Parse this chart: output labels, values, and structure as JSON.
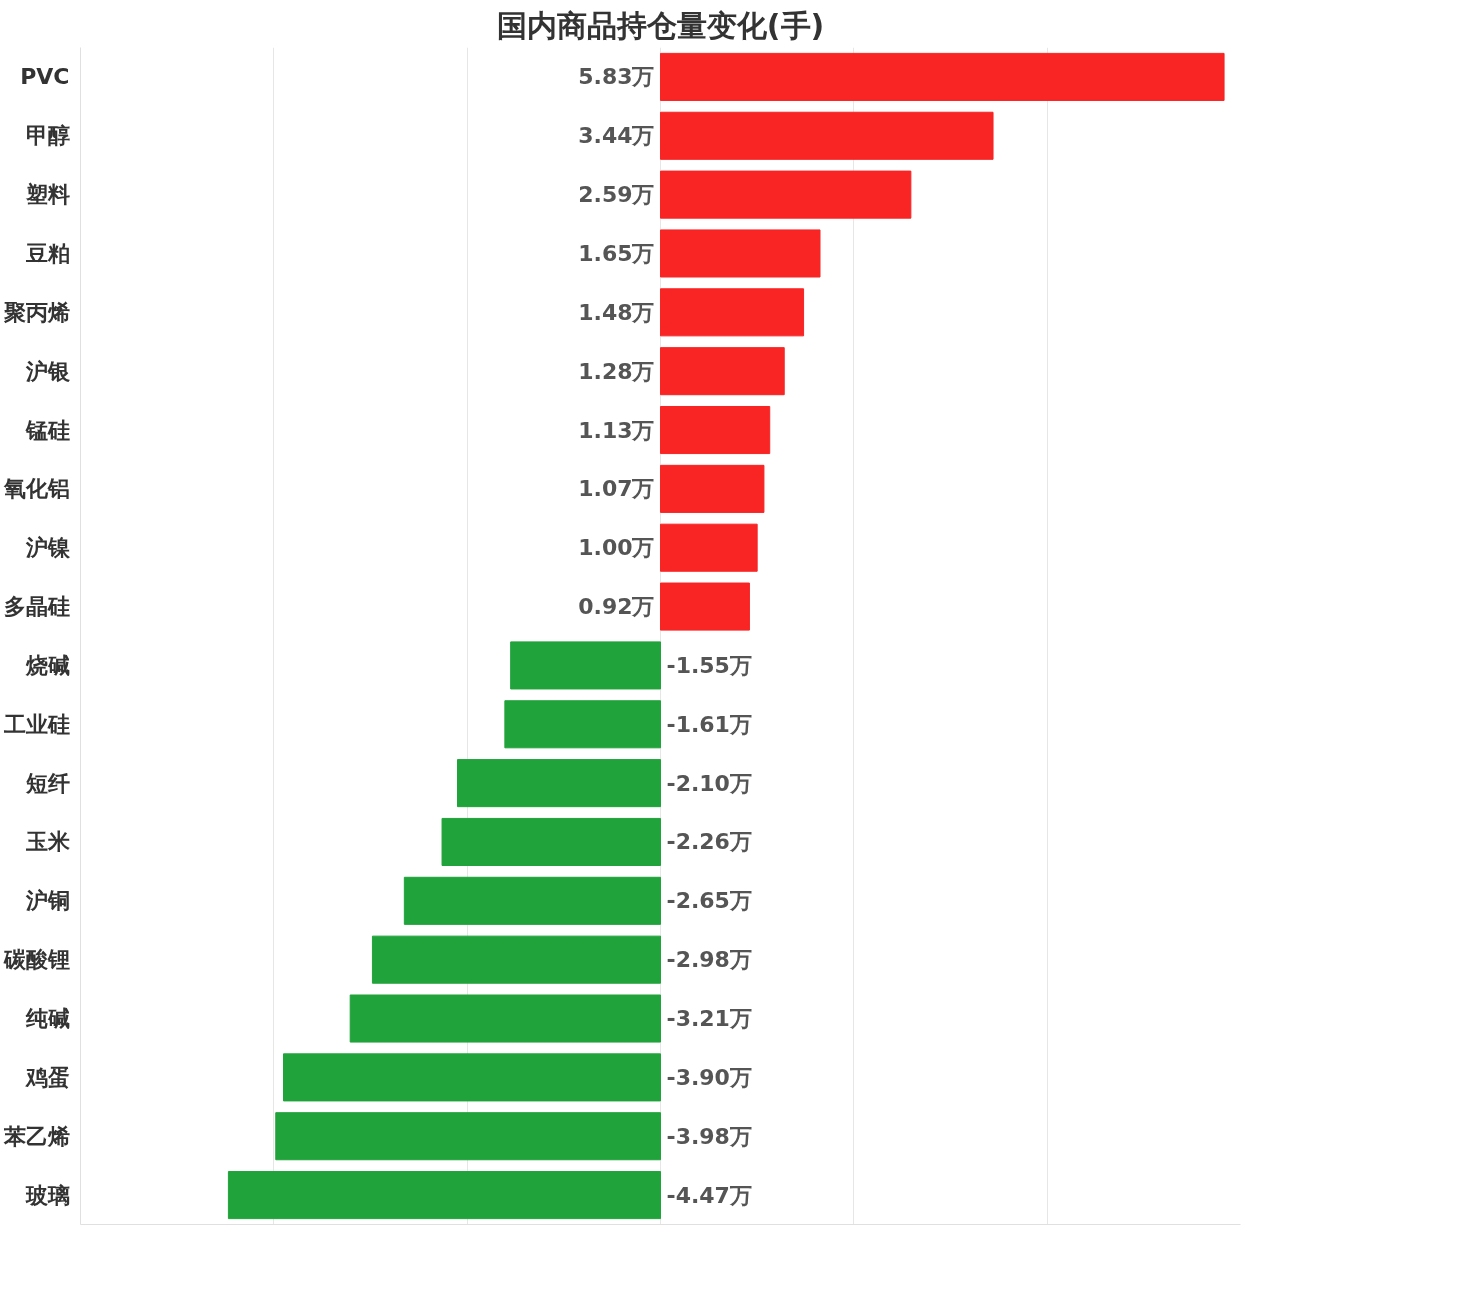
{
  "chart_data": {
    "type": "bar",
    "orientation": "horizontal",
    "title": "国内商品持仓量变化(手)",
    "categories": [
      "PVC",
      "甲醇",
      "塑料",
      "豆粕",
      "聚丙烯",
      "沪银",
      "锰硅",
      "氧化铝",
      "沪镍",
      "多晶硅",
      "烧碱",
      "工业硅",
      "短纤",
      "玉米",
      "沪铜",
      "碳酸锂",
      "纯碱",
      "鸡蛋",
      "苯乙烯",
      "玻璃"
    ],
    "values": [
      5.83,
      3.44,
      2.59,
      1.65,
      1.48,
      1.28,
      1.13,
      1.07,
      1.0,
      0.92,
      -1.55,
      -1.61,
      -2.1,
      -2.26,
      -2.65,
      -2.98,
      -3.21,
      -3.9,
      -3.98,
      -4.47
    ],
    "value_labels": [
      "5.83万",
      "3.44万",
      "2.59万",
      "1.65万",
      "1.48万",
      "1.28万",
      "1.13万",
      "1.07万",
      "1.00万",
      "0.92万",
      "-1.55万",
      "-1.61万",
      "-2.10万",
      "-2.26万",
      "-2.65万",
      "-2.98万",
      "-3.21万",
      "-3.90万",
      "-3.98万",
      "-4.47万"
    ],
    "colors": [
      "#f92424",
      "#f92424",
      "#f92424",
      "#f92424",
      "#f92424",
      "#f92424",
      "#f92424",
      "#f92424",
      "#f92424",
      "#f92424",
      "#21a33b",
      "#21a33b",
      "#21a33b",
      "#21a33b",
      "#21a33b",
      "#21a33b",
      "#21a33b",
      "#21a33b",
      "#21a33b",
      "#21a33b"
    ],
    "xticks": [
      {
        "value": -4,
        "label": null
      },
      {
        "value": -2,
        "label": null
      },
      {
        "value": 0,
        "label": null
      },
      {
        "value": 2,
        "label": null
      },
      {
        "value": 4,
        "label": null
      }
    ],
    "grid": "x",
    "tick_labels": "y"
  }
}
